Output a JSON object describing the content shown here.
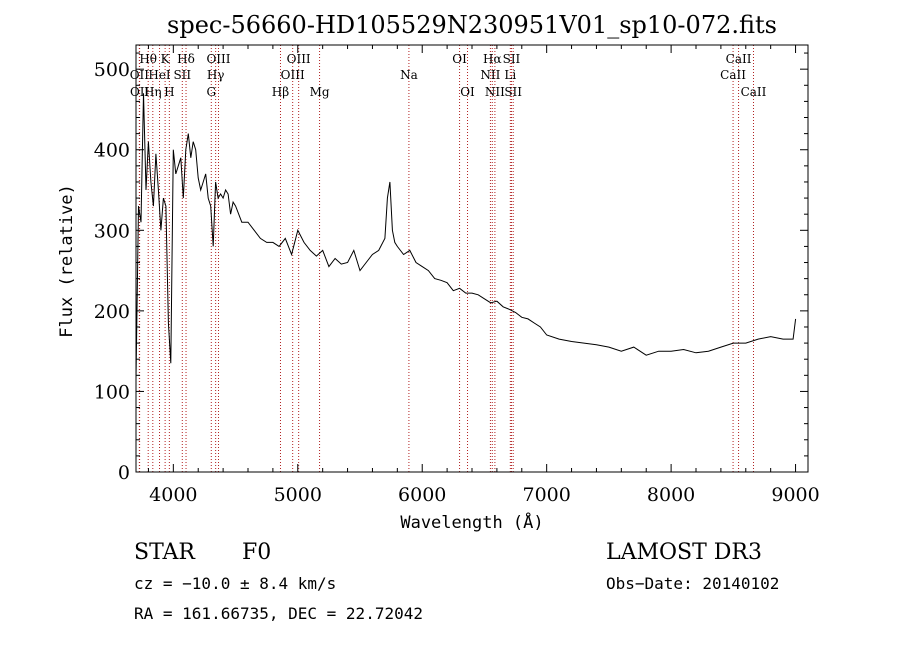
{
  "chart_data": {
    "type": "line",
    "title": "spec-56660-HD105529N230951V01_sp10-072.fits",
    "xlabel": "Wavelength (Å)",
    "ylabel": "Flux (relative)",
    "xlim": [
      3700,
      9100
    ],
    "ylim": [
      0,
      530
    ],
    "xticks": [
      4000,
      5000,
      6000,
      7000,
      8000,
      9000
    ],
    "yticks": [
      0,
      100,
      200,
      300,
      400,
      500
    ],
    "grid": false,
    "line_color": "#000000",
    "marker_color": "#b22222",
    "series": [
      {
        "x": [
          3700,
          3720,
          3740,
          3760,
          3780,
          3800,
          3820,
          3840,
          3860,
          3880,
          3900,
          3920,
          3940,
          3960,
          3980,
          4000,
          4020,
          4040,
          4060,
          4080,
          4100,
          4120,
          4140,
          4160,
          4180,
          4200,
          4220,
          4240,
          4260,
          4280,
          4300,
          4320,
          4340,
          4360,
          4380,
          4400,
          4420,
          4440,
          4460,
          4480,
          4500,
          4550,
          4600,
          4650,
          4700,
          4750,
          4800,
          4850,
          4900,
          4950,
          5000,
          5050,
          5100,
          5150,
          5200,
          5250,
          5300,
          5350,
          5400,
          5450,
          5500,
          5550,
          5600,
          5650,
          5700,
          5720,
          5740,
          5760,
          5780,
          5800,
          5850,
          5900,
          5950,
          6000,
          6050,
          6100,
          6150,
          6200,
          6250,
          6300,
          6350,
          6400,
          6450,
          6500,
          6550,
          6600,
          6650,
          6700,
          6750,
          6800,
          6850,
          6900,
          6950,
          7000,
          7100,
          7200,
          7300,
          7400,
          7500,
          7600,
          7700,
          7800,
          7900,
          8000,
          8100,
          8200,
          8300,
          8400,
          8500,
          8600,
          8700,
          8800,
          8900,
          8980,
          9000
        ],
        "y": [
          115,
          330,
          310,
          470,
          350,
          410,
          360,
          330,
          395,
          350,
          300,
          340,
          330,
          185,
          135,
          400,
          370,
          380,
          390,
          340,
          400,
          420,
          390,
          410,
          400,
          365,
          350,
          360,
          370,
          340,
          330,
          280,
          360,
          340,
          345,
          340,
          350,
          345,
          320,
          335,
          330,
          310,
          310,
          300,
          290,
          285,
          285,
          280,
          290,
          270,
          300,
          285,
          275,
          268,
          275,
          255,
          265,
          258,
          260,
          275,
          250,
          260,
          270,
          275,
          290,
          340,
          360,
          300,
          285,
          280,
          270,
          275,
          260,
          255,
          250,
          240,
          238,
          235,
          225,
          228,
          222,
          222,
          220,
          215,
          210,
          212,
          205,
          202,
          198,
          192,
          190,
          185,
          180,
          170,
          165,
          162,
          160,
          158,
          155,
          150,
          155,
          145,
          150,
          150,
          152,
          148,
          150,
          155,
          160,
          160,
          165,
          168,
          165,
          165,
          190
        ]
      }
    ],
    "lines": [
      {
        "name": "Hθ",
        "wavelength": 3798
      },
      {
        "name": "OII",
        "wavelength": 3727
      },
      {
        "name": "OII",
        "wavelength": 3729
      },
      {
        "name": "Hη",
        "wavelength": 3835
      },
      {
        "name": "K",
        "wavelength": 3934
      },
      {
        "name": "HeI",
        "wavelength": 3889
      },
      {
        "name": "H",
        "wavelength": 3968
      },
      {
        "name": "Hδ",
        "wavelength": 4102
      },
      {
        "name": "SII",
        "wavelength": 4072
      },
      {
        "name": "OIII",
        "wavelength": 4363
      },
      {
        "name": "Hγ",
        "wavelength": 4340
      },
      {
        "name": "G",
        "wavelength": 4305
      },
      {
        "name": "Hβ",
        "wavelength": 4861
      },
      {
        "name": "OIII",
        "wavelength": 5007
      },
      {
        "name": "OIII",
        "wavelength": 4959
      },
      {
        "name": "Mg",
        "wavelength": 5175
      },
      {
        "name": "Na",
        "wavelength": 5893
      },
      {
        "name": "OI",
        "wavelength": 6300
      },
      {
        "name": "OI",
        "wavelength": 6364
      },
      {
        "name": "Hα",
        "wavelength": 6563
      },
      {
        "name": "NII",
        "wavelength": 6548
      },
      {
        "name": "NII",
        "wavelength": 6584
      },
      {
        "name": "SII",
        "wavelength": 6717
      },
      {
        "name": "Li",
        "wavelength": 6708
      },
      {
        "name": "SII",
        "wavelength": 6731
      },
      {
        "name": "CaII",
        "wavelength": 8542
      },
      {
        "name": "CaII",
        "wavelength": 8498
      },
      {
        "name": "CaII",
        "wavelength": 8662
      }
    ]
  },
  "info": {
    "obj_type": "STAR",
    "spec_class": "F0",
    "survey": "LAMOST DR3",
    "cz": "cz = −10.0 ± 8.4 km/s",
    "obs_date": "Obs−Date: 20140102",
    "radec": "RA = 161.66735, DEC =  22.72042"
  }
}
